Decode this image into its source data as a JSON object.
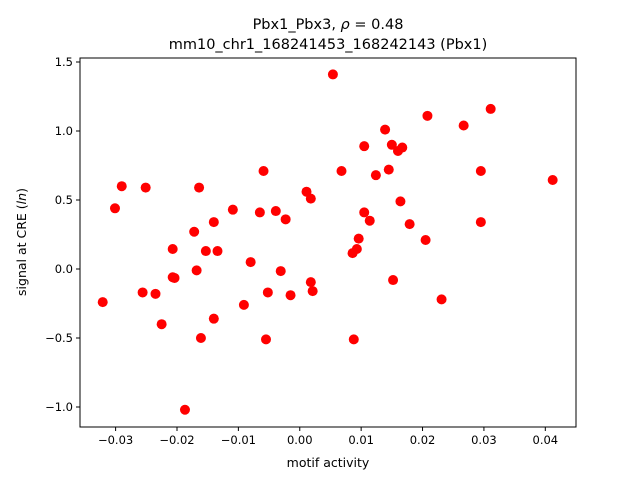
{
  "chart_data": {
    "type": "scatter",
    "title_line1_prefix": "Pbx1_Pbx3, ",
    "title_rho_symbol": "ρ",
    "title_rho_value": " = 0.48",
    "title_line2": "mm10_chr1_168241453_168242143 (Pbx1)",
    "xlabel": "motif activity",
    "ylabel_prefix": "signal at CRE (",
    "ylabel_italic": "ln",
    "ylabel_suffix": ")",
    "xlim": [
      -0.0358,
      0.045
    ],
    "ylim": [
      -1.145,
      1.529
    ],
    "xticks": [
      -0.03,
      -0.02,
      -0.01,
      0.0,
      0.01,
      0.02,
      0.03,
      0.04
    ],
    "xtick_labels": [
      "−0.03",
      "−0.02",
      "−0.01",
      "0.00",
      "0.01",
      "0.02",
      "0.03",
      "0.04"
    ],
    "yticks": [
      -1.0,
      -0.5,
      0.0,
      0.5,
      1.0,
      1.5
    ],
    "ytick_labels": [
      "−1.0",
      "−0.5",
      "0.0",
      "0.5",
      "1.0",
      "1.5"
    ],
    "grid": false,
    "marker_color": "#ff0000",
    "points": [
      [
        -0.0321,
        -0.24
      ],
      [
        -0.0301,
        0.44
      ],
      [
        -0.029,
        0.6
      ],
      [
        -0.0256,
        -0.17
      ],
      [
        -0.0251,
        0.59
      ],
      [
        -0.0235,
        -0.18
      ],
      [
        -0.0225,
        -0.4
      ],
      [
        -0.0207,
        0.145
      ],
      [
        -0.0207,
        -0.06
      ],
      [
        -0.0204,
        -0.065
      ],
      [
        -0.0187,
        -1.02
      ],
      [
        -0.0172,
        0.27
      ],
      [
        -0.0168,
        -0.01
      ],
      [
        -0.0164,
        0.59
      ],
      [
        -0.0161,
        -0.5
      ],
      [
        -0.0153,
        0.13
      ],
      [
        -0.014,
        0.34
      ],
      [
        -0.014,
        -0.36
      ],
      [
        -0.0134,
        0.13
      ],
      [
        -0.0109,
        0.43
      ],
      [
        -0.0091,
        -0.26
      ],
      [
        -0.008,
        0.05
      ],
      [
        -0.0065,
        0.41
      ],
      [
        -0.0059,
        0.71
      ],
      [
        -0.0055,
        -0.51
      ],
      [
        -0.0052,
        -0.17
      ],
      [
        -0.0039,
        0.42
      ],
      [
        -0.0031,
        -0.015
      ],
      [
        -0.0023,
        0.36
      ],
      [
        -0.0015,
        -0.19
      ],
      [
        0.0054,
        1.41
      ],
      [
        0.0311,
        1.16
      ],
      [
        0.0208,
        1.11
      ],
      [
        0.0267,
        1.04
      ],
      [
        0.0139,
        1.01
      ],
      [
        0.0105,
        0.89
      ],
      [
        0.015,
        0.9
      ],
      [
        0.0167,
        0.88
      ],
      [
        0.016,
        0.855
      ],
      [
        0.0068,
        0.71
      ],
      [
        0.0124,
        0.68
      ],
      [
        0.0145,
        0.72
      ],
      [
        0.0295,
        0.71
      ],
      [
        0.0412,
        0.645
      ],
      [
        0.0011,
        0.56
      ],
      [
        0.0018,
        0.51
      ],
      [
        0.0164,
        0.49
      ],
      [
        0.0105,
        0.41
      ],
      [
        0.0114,
        0.35
      ],
      [
        0.0179,
        0.325
      ],
      [
        0.0295,
        0.34
      ],
      [
        0.0096,
        0.22
      ],
      [
        0.0205,
        0.21
      ],
      [
        0.0093,
        0.145
      ],
      [
        0.0086,
        0.115
      ],
      [
        0.0018,
        -0.095
      ],
      [
        0.0021,
        -0.16
      ],
      [
        0.0152,
        -0.08
      ],
      [
        0.0231,
        -0.22
      ],
      [
        0.0088,
        -0.51
      ]
    ]
  }
}
